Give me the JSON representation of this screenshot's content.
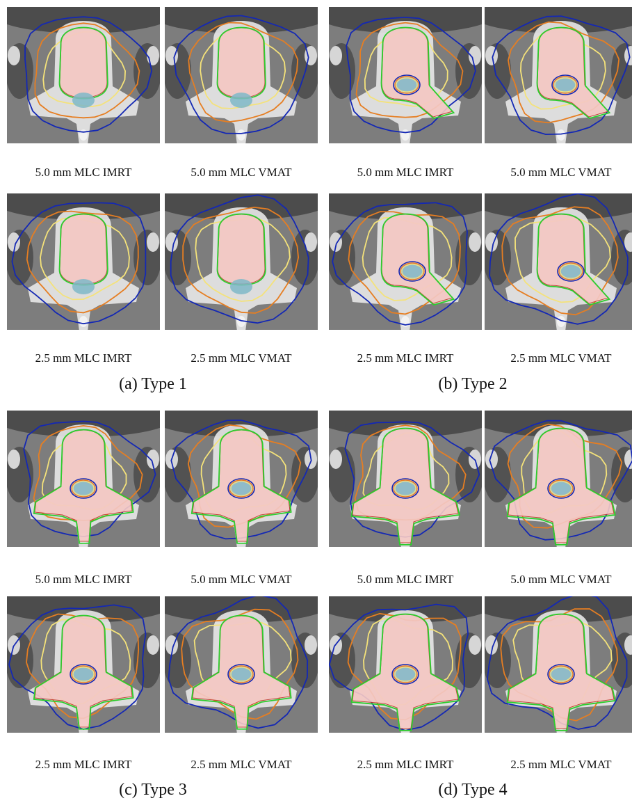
{
  "groups": [
    {
      "id": "type1",
      "caption": "(a) Type 1",
      "target": "vertebral-body",
      "panels": [
        {
          "label": "5.0 mm MLC IMRT"
        },
        {
          "label": "5.0 mm MLC VMAT"
        },
        {
          "label": "2.5 mm MLC IMRT"
        },
        {
          "label": "2.5 mm MLC VMAT"
        }
      ]
    },
    {
      "id": "type2",
      "caption": "(b) Type 2",
      "target": "vertebral-body-pedicle",
      "panels": [
        {
          "label": "5.0 mm MLC IMRT"
        },
        {
          "label": "5.0 mm MLC VMAT"
        },
        {
          "label": "2.5 mm MLC IMRT"
        },
        {
          "label": "2.5 mm MLC VMAT"
        }
      ]
    },
    {
      "id": "type3",
      "caption": "(c) Type 3",
      "target": "vertebral-body-posterior",
      "panels": [
        {
          "label": "5.0 mm MLC IMRT"
        },
        {
          "label": "5.0 mm MLC VMAT"
        },
        {
          "label": "2.5 mm MLC IMRT"
        },
        {
          "label": "2.5 mm MLC VMAT"
        }
      ]
    },
    {
      "id": "type4",
      "caption": "(d) Type 4",
      "target": "whole-vertebra",
      "panels": [
        {
          "label": "5.0 mm MLC IMRT"
        },
        {
          "label": "5.0 mm MLC VMAT"
        },
        {
          "label": "2.5 mm MLC IMRT"
        },
        {
          "label": "2.5 mm MLC VMAT"
        }
      ]
    }
  ],
  "colors": {
    "ct_background": "#8a8a8a",
    "ct_fat": "#3c3c3c",
    "ct_bone": "#e8e8e8",
    "target_fill": "#f4c8c4",
    "target_edge": "#c0392b",
    "cord_fill": "#7fb8c8",
    "isodose_green": "#2ecc2e",
    "isodose_blue": "#1428b4",
    "isodose_orange": "#e67e22",
    "isodose_yellow": "#f4e27a"
  }
}
